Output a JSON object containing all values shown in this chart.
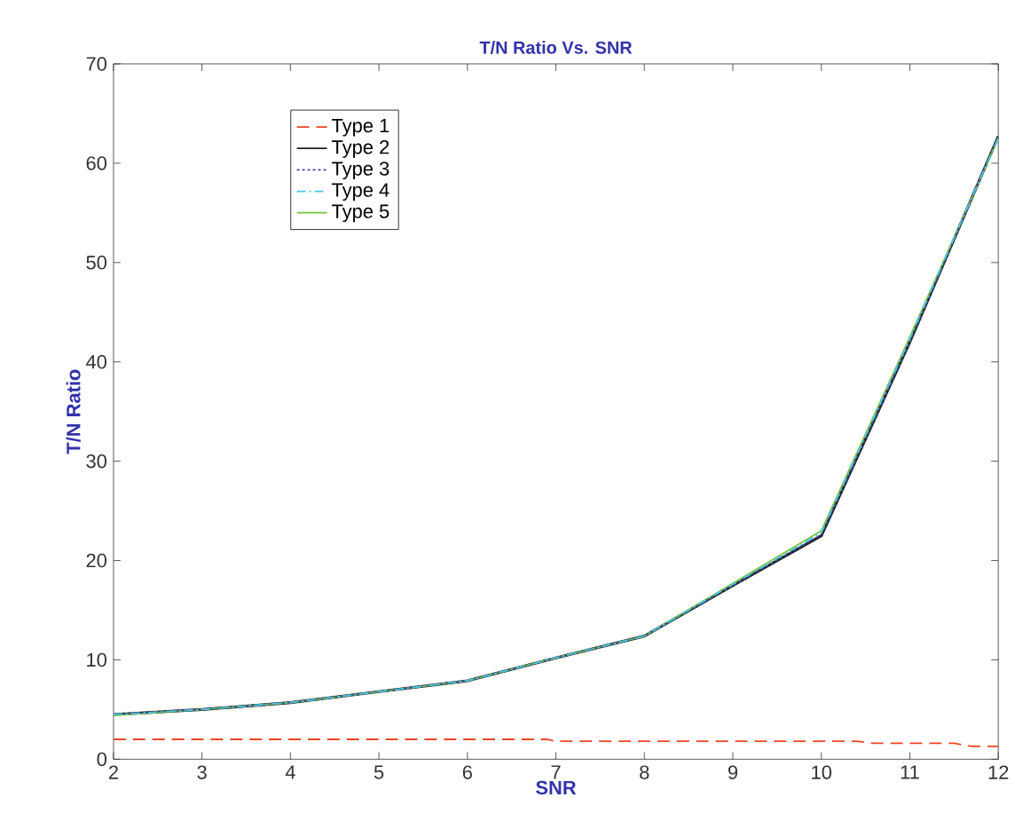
{
  "chart_data": {
    "type": "line",
    "title": "T/N Ratio Vs. SNR",
    "xlabel": "SNR",
    "ylabel": "T/N Ratio",
    "xlim": [
      2,
      12
    ],
    "ylim": [
      0,
      70
    ],
    "xticks": [
      2,
      3,
      4,
      5,
      6,
      7,
      8,
      9,
      10,
      11,
      12
    ],
    "yticks": [
      0,
      10,
      20,
      30,
      40,
      50,
      60,
      70
    ],
    "grid": false,
    "legend": "top left",
    "series": [
      {
        "name": "Type 1",
        "color": "#ee4422",
        "line_style": "dashed",
        "x": [
          2,
          6.9,
          7,
          10.4,
          10.6,
          11.5,
          11.7,
          12
        ],
        "values": [
          2,
          2,
          1.8,
          1.8,
          1.6,
          1.6,
          1.3,
          1.3
        ]
      },
      {
        "name": "Type 2",
        "color": "#222222",
        "line_style": "solid",
        "x": [
          2,
          3,
          4,
          5,
          6,
          7,
          8,
          9,
          10,
          11,
          12
        ],
        "values": [
          4.5,
          5.0,
          5.7,
          6.8,
          7.9,
          10.2,
          12.4,
          17.5,
          22.5,
          42,
          62.7
        ]
      },
      {
        "name": "Type 3",
        "color": "#4444aa",
        "line_style": "dotted",
        "x": [
          2,
          3,
          4,
          5,
          6,
          7,
          8,
          9,
          10,
          11,
          12
        ],
        "values": [
          4.5,
          5.0,
          5.7,
          6.8,
          7.9,
          10.2,
          12.4,
          17.5,
          22.6,
          42,
          62.7
        ]
      },
      {
        "name": "Type 4",
        "color": "#44c8e8",
        "line_style": "dashdot",
        "x": [
          2,
          3,
          4,
          5,
          6,
          7,
          8,
          9,
          10,
          11,
          12
        ],
        "values": [
          4.5,
          5.0,
          5.7,
          6.8,
          7.9,
          10.2,
          12.4,
          17.6,
          22.8,
          42.3,
          62.6
        ]
      },
      {
        "name": "Type 5",
        "color": "#77c33a",
        "line_style": "solid",
        "x": [
          2,
          3,
          4,
          5,
          6,
          7,
          8,
          9,
          10,
          11,
          12
        ],
        "values": [
          4.4,
          5.0,
          5.7,
          6.8,
          7.9,
          10.2,
          12.4,
          17.7,
          23.0,
          42.5,
          62.5
        ]
      }
    ]
  }
}
